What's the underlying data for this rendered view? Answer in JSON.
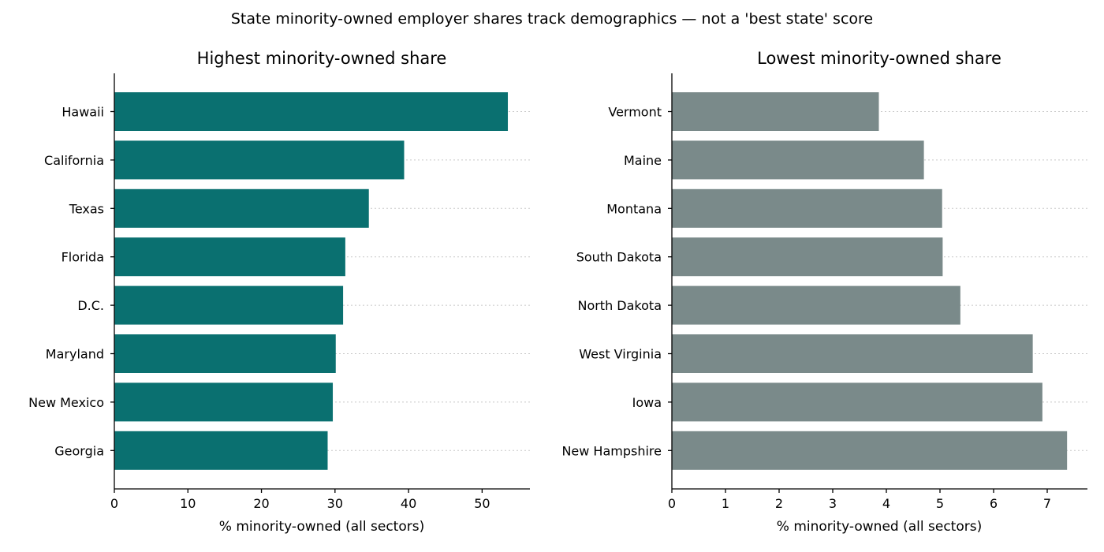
{
  "figure": {
    "suptitle": "State minority-owned employer shares track demographics — not a 'best state' score"
  },
  "chart_data": [
    {
      "type": "bar",
      "orientation": "horizontal",
      "title": "Highest minority-owned share",
      "xlabel": "% minority-owned (all sectors)",
      "ylabel": "",
      "categories": [
        "Hawaii",
        "California",
        "Texas",
        "Florida",
        "D.C.",
        "Maryland",
        "New Mexico",
        "Georgia"
      ],
      "values": [
        53.5,
        39.4,
        34.6,
        31.4,
        31.1,
        30.1,
        29.7,
        29.0
      ],
      "xlim": [
        0,
        56.5
      ],
      "xticks": [
        0,
        10,
        20,
        30,
        40,
        50
      ],
      "grid": "dotted horizontal",
      "color": "#0a7070"
    },
    {
      "type": "bar",
      "orientation": "horizontal",
      "title": "Lowest minority-owned share",
      "xlabel": "% minority-owned (all sectors)",
      "ylabel": "",
      "categories": [
        "Vermont",
        "Maine",
        "Montana",
        "South Dakota",
        "North Dakota",
        "West Virginia",
        "Iowa",
        "New Hampshire"
      ],
      "values": [
        3.86,
        4.7,
        5.04,
        5.05,
        5.38,
        6.73,
        6.91,
        7.37
      ],
      "xlim": [
        0,
        7.75
      ],
      "xticks": [
        0,
        1,
        2,
        3,
        4,
        5,
        6,
        7
      ],
      "grid": "dotted horizontal",
      "color": "#7a8a8a"
    }
  ]
}
